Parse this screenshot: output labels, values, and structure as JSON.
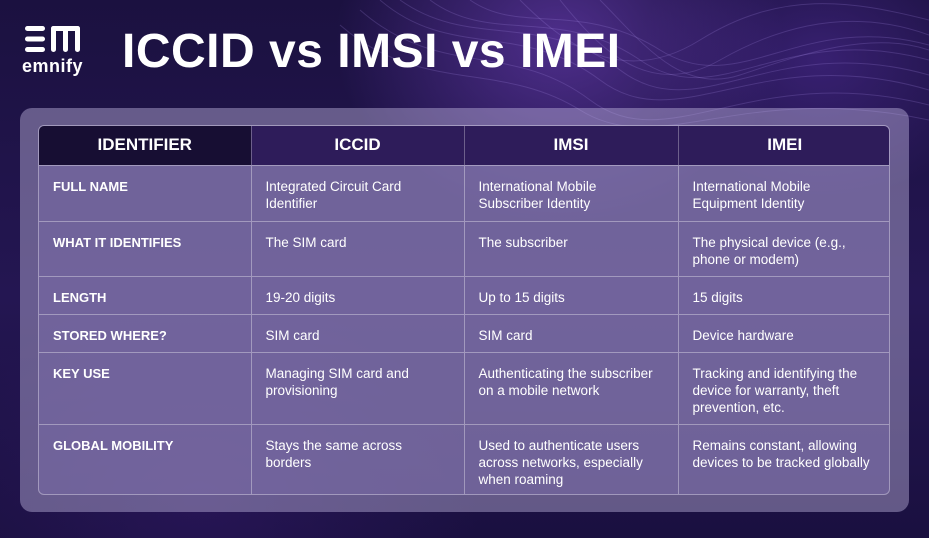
{
  "brand": {
    "logo_text": "emnify"
  },
  "page": {
    "title": "ICCID vs IMSI vs IMEI"
  },
  "table": {
    "headers": [
      "IDENTIFIER",
      "ICCID",
      "IMSI",
      "IMEI"
    ],
    "rows": [
      [
        "FULL NAME",
        "Integrated Circuit Card Identifier",
        "International Mobile Subscriber Identity",
        "International Mobile Equipment Identity"
      ],
      [
        "WHAT IT IDENTIFIES",
        "The SIM card",
        "The subscriber",
        "The physical device (e.g., phone or modem)"
      ],
      [
        "LENGTH",
        "19-20 digits",
        "Up to 15 digits",
        "15 digits"
      ],
      [
        "STORED WHERE?",
        "SIM card",
        "SIM card",
        "Device hardware"
      ],
      [
        "KEY USE",
        "Managing SIM card and provisioning",
        "Authenticating the subscriber on a mobile network",
        "Tracking and identifying the device for warranty, theft prevention, etc."
      ],
      [
        "GLOBAL MOBILITY",
        "Stays the same across borders",
        "Used to authenticate users across networks, especially when roaming",
        "Remains constant, allowing devices to be tracked globally"
      ]
    ]
  },
  "colors": {
    "background": "#1b1140",
    "header_first": "#170e33",
    "header": "#2e1c5a",
    "text": "#ffffff"
  }
}
